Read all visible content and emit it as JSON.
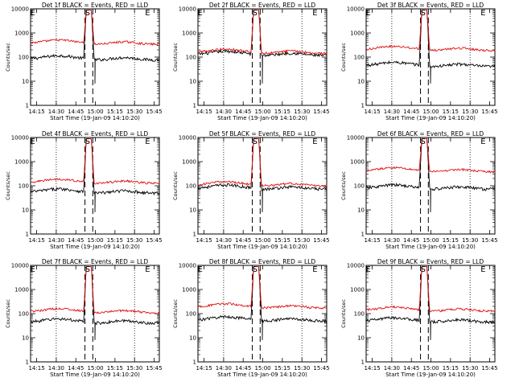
{
  "chart_data": [
    {
      "type": "line",
      "title": "Det 1f BLACK = Events, RED = LLD",
      "xlabel": "Start Time (19-Jan-09 14:10:20)",
      "ylabel": "Counts/sec",
      "x_ticks": [
        "14:15",
        "14:30",
        "14:45",
        "15:00",
        "15:15",
        "15:30",
        "15:45"
      ],
      "y_ticks": [
        "1",
        "10",
        "100",
        "1000",
        "10000"
      ],
      "yscale": "log",
      "ylim": [
        1,
        10000
      ],
      "xlim": [
        "14:10:20",
        "15:49"
      ],
      "marker_labels": [
        "E",
        "S",
        "E"
      ],
      "series": [
        {
          "color": "#000000",
          "level": 85
        },
        {
          "color": "#e01010",
          "level": 380
        }
      ]
    },
    {
      "type": "line",
      "title": "Det 2f BLACK = Events, RED = LLD",
      "xlabel": "Start Time (19-Jan-09 14:10:20)",
      "ylabel": "Counts/sec",
      "x_ticks": [
        "14:15",
        "14:30",
        "14:45",
        "15:00",
        "15:15",
        "15:30",
        "15:45"
      ],
      "y_ticks": [
        "1",
        "10",
        "100",
        "1000",
        "10000"
      ],
      "yscale": "log",
      "ylim": [
        1,
        10000
      ],
      "xlim": [
        "14:10:20",
        "15:49"
      ],
      "marker_labels": [
        "E",
        "S",
        "E"
      ],
      "series": [
        {
          "color": "#000000",
          "level": 130
        },
        {
          "color": "#e01010",
          "level": 160
        }
      ]
    },
    {
      "type": "line",
      "title": "Det 3f BLACK = Events, RED = LLD",
      "xlabel": "Start Time (19-Jan-09 14:10:20)",
      "ylabel": "Counts/sec",
      "x_ticks": [
        "14:15",
        "14:30",
        "14:45",
        "15:00",
        "15:15",
        "15:30",
        "15:45"
      ],
      "y_ticks": [
        "1",
        "10",
        "100",
        "1000",
        "10000"
      ],
      "yscale": "log",
      "ylim": [
        1,
        10000
      ],
      "xlim": [
        "14:10:20",
        "15:49"
      ],
      "marker_labels": [
        "E",
        "S",
        "E"
      ],
      "series": [
        {
          "color": "#000000",
          "level": 45
        },
        {
          "color": "#e01010",
          "level": 210
        }
      ]
    },
    {
      "type": "line",
      "title": "Det 4f BLACK = Events, RED = LLD",
      "xlabel": "Start Time (19-Jan-09 14:10:20)",
      "ylabel": "Counts/sec",
      "x_ticks": [
        "14:15",
        "14:30",
        "14:45",
        "15:00",
        "15:15",
        "15:30",
        "15:45"
      ],
      "y_ticks": [
        "1",
        "10",
        "100",
        "1000",
        "10000"
      ],
      "yscale": "log",
      "ylim": [
        1,
        10000
      ],
      "xlim": [
        "14:10:20",
        "15:49"
      ],
      "marker_labels": [
        "E",
        "S",
        "E"
      ],
      "series": [
        {
          "color": "#000000",
          "level": 55
        },
        {
          "color": "#e01010",
          "level": 140
        }
      ]
    },
    {
      "type": "line",
      "title": "Det 5f BLACK = Events, RED = LLD",
      "xlabel": "Start Time (19-Jan-09 14:10:20)",
      "ylabel": "Counts/sec",
      "x_ticks": [
        "14:15",
        "14:30",
        "14:45",
        "15:00",
        "15:15",
        "15:30",
        "15:45"
      ],
      "y_ticks": [
        "1",
        "10",
        "100",
        "1000",
        "10000"
      ],
      "yscale": "log",
      "ylim": [
        1,
        10000
      ],
      "xlim": [
        "14:10:20",
        "15:49"
      ],
      "marker_labels": [
        "S",
        "E"
      ],
      "series": [
        {
          "color": "#000000",
          "level": 80
        },
        {
          "color": "#e01010",
          "level": 110
        }
      ]
    },
    {
      "type": "line",
      "title": "Det 6f BLACK = Events, RED = LLD",
      "xlabel": "Start Time (19-Jan-09 14:10:20)",
      "ylabel": "Counts/sec",
      "x_ticks": [
        "14:15",
        "14:30",
        "14:45",
        "15:00",
        "15:15",
        "15:30",
        "15:45"
      ],
      "y_ticks": [
        "1",
        "10",
        "100",
        "1000",
        "10000"
      ],
      "yscale": "log",
      "ylim": [
        1,
        10000
      ],
      "xlim": [
        "14:10:20",
        "15:49"
      ],
      "marker_labels": [
        "S",
        "E"
      ],
      "series": [
        {
          "color": "#000000",
          "level": 80
        },
        {
          "color": "#e01010",
          "level": 420
        }
      ]
    },
    {
      "type": "line",
      "title": "Det 7f BLACK = Events, RED = LLD",
      "xlabel": "Start Time (19-Jan-09 14:10:20)",
      "ylabel": "Counts/sec",
      "x_ticks": [
        "14:15",
        "14:30",
        "14:45",
        "15:00",
        "15:15",
        "15:30",
        "15:45"
      ],
      "y_ticks": [
        "1",
        "10",
        "100",
        "1000",
        "10000"
      ],
      "yscale": "log",
      "ylim": [
        1,
        10000
      ],
      "xlim": [
        "14:10:20",
        "15:49"
      ],
      "marker_labels": [
        "E",
        "S",
        "E"
      ],
      "series": [
        {
          "color": "#000000",
          "level": 45
        },
        {
          "color": "#e01010",
          "level": 120
        }
      ]
    },
    {
      "type": "line",
      "title": "Det 8f BLACK = Events, RED = LLD",
      "xlabel": "Start Time (19-Jan-09 14:10:20)",
      "ylabel": "Counts/sec",
      "x_ticks": [
        "14:15",
        "14:30",
        "14:45",
        "15:00",
        "15:15",
        "15:30",
        "15:45"
      ],
      "y_ticks": [
        "1",
        "10",
        "100",
        "1000",
        "10000"
      ],
      "yscale": "log",
      "ylim": [
        1,
        10000
      ],
      "xlim": [
        "14:10:20",
        "15:49"
      ],
      "marker_labels": [
        "E",
        "S",
        "E"
      ],
      "series": [
        {
          "color": "#000000",
          "level": 55
        },
        {
          "color": "#e01010",
          "level": 190
        }
      ]
    },
    {
      "type": "line",
      "title": "Det 9f BLACK = Events, RED = LLD",
      "xlabel": "Start Time (19-Jan-09 14:10:20)",
      "ylabel": "Counts/sec",
      "x_ticks": [
        "14:15",
        "14:30",
        "14:45",
        "15:00",
        "15:15",
        "15:30",
        "15:45"
      ],
      "y_ticks": [
        "1",
        "10",
        "100",
        "1000",
        "10000"
      ],
      "yscale": "log",
      "ylim": [
        1,
        10000
      ],
      "xlim": [
        "14:10:20",
        "15:49"
      ],
      "marker_labels": [
        "E",
        "S",
        "E"
      ],
      "series": [
        {
          "color": "#000000",
          "level": 50
        },
        {
          "color": "#e01010",
          "level": 140
        }
      ]
    }
  ]
}
